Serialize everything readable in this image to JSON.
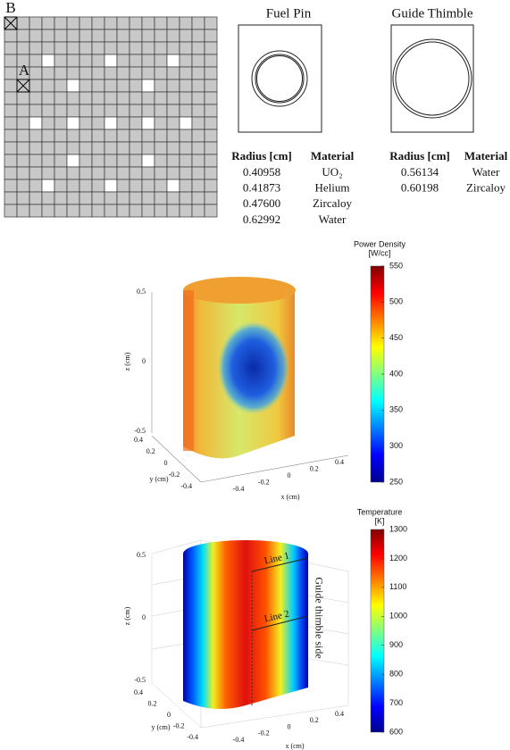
{
  "lattice": {
    "labels": [
      "B",
      "A"
    ]
  },
  "fuel_pin": {
    "title": "Fuel Pin",
    "headers": [
      "Radius [cm]",
      "Material"
    ],
    "rows": [
      [
        "0.40958",
        "UO₂"
      ],
      [
        "0.41873",
        "Helium"
      ],
      [
        "0.47600",
        "Zircaloy"
      ],
      [
        "0.62992",
        "Water"
      ]
    ]
  },
  "guide_thimble": {
    "title": "Guide Thimble",
    "headers": [
      "Radius [cm]",
      "Material"
    ],
    "rows": [
      [
        "0.56134",
        "Water"
      ],
      [
        "0.60198",
        "Zircaloy"
      ]
    ]
  },
  "power_plot": {
    "colorbar_title": "Power Density",
    "colorbar_unit": "[W/cc]",
    "colorbar_range": [
      250,
      550
    ],
    "colorbar_ticks": [
      250,
      300,
      350,
      400,
      450,
      500,
      550
    ],
    "z_label": "z (cm)",
    "y_label": "y (cm)",
    "x_label": "x (cm)",
    "z_ticks": [
      0.5,
      0,
      -0.5
    ],
    "y_ticks": [
      0.4,
      0.2,
      0,
      -0.2,
      -0.4
    ],
    "x_ticks": [
      -0.4,
      -0.2,
      0,
      0.2,
      0.4
    ]
  },
  "temperature_plot": {
    "colorbar_title": "Temperature",
    "colorbar_unit": "[K]",
    "colorbar_range": [
      600,
      1300
    ],
    "colorbar_ticks": [
      600,
      700,
      800,
      900,
      1000,
      1100,
      1200,
      1300
    ],
    "z_label": "z (cm)",
    "y_label": "y (cm)",
    "x_label": "x (cm)",
    "z_ticks": [
      0.5,
      0,
      -0.5
    ],
    "y_ticks": [
      0.4,
      0.2,
      0,
      -0.2,
      -0.4
    ],
    "x_ticks": [
      -0.4,
      -0.2,
      0,
      0.2,
      0.4
    ],
    "annotations": [
      "Line 1",
      "Line 2",
      "Guide thimble side"
    ]
  }
}
